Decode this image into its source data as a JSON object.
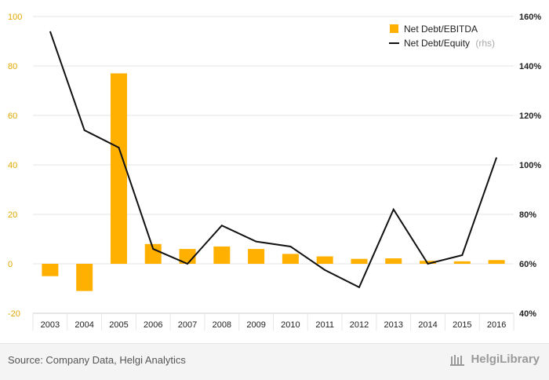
{
  "chart_data": {
    "type": "bar+line",
    "categories": [
      "2003",
      "2004",
      "2005",
      "2006",
      "2007",
      "2008",
      "2009",
      "2010",
      "2011",
      "2012",
      "2013",
      "2014",
      "2015",
      "2016"
    ],
    "series": [
      {
        "name": "Net Debt/EBITDA",
        "type": "bar",
        "axis": "left",
        "color": "#ffb000",
        "values": [
          -5,
          -11,
          77,
          8,
          6,
          7,
          6,
          4,
          3,
          2,
          2.2,
          1.2,
          1,
          1.5
        ]
      },
      {
        "name": "Net Debt/Equity",
        "type": "line",
        "axis": "right",
        "color": "#111111",
        "values": [
          154,
          114,
          107,
          66,
          60,
          75.5,
          69,
          67,
          57.5,
          50.5,
          82,
          60,
          63.5,
          103
        ]
      }
    ],
    "left_axis": {
      "min": -20,
      "max": 100,
      "ticks": [
        "-20",
        "0",
        "20",
        "40",
        "60",
        "80",
        "100"
      ]
    },
    "right_axis": {
      "min": 40,
      "max": 160,
      "ticks": [
        "40%",
        "60%",
        "80%",
        "100%",
        "120%",
        "140%",
        "160%"
      ]
    },
    "legend": [
      {
        "label": "Net Debt/EBITDA",
        "suffix": ""
      },
      {
        "label": "Net Debt/Equity",
        "suffix": "(rhs)"
      }
    ],
    "legend_position": "top-right",
    "grid": true
  },
  "footer": {
    "source": "Source: Company Data, Helgi Analytics",
    "brand": "HelgiLibrary"
  }
}
